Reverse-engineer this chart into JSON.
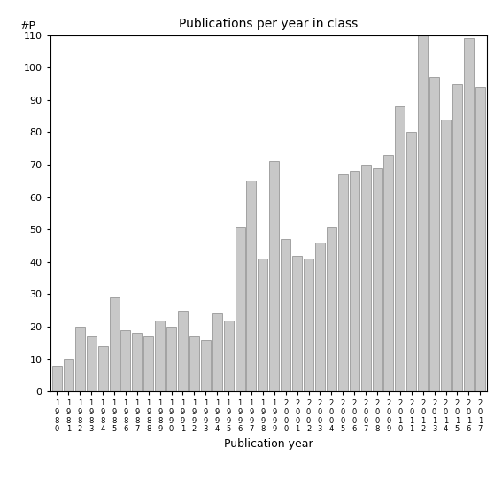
{
  "title": "Publications per year in class",
  "xlabel": "Publication year",
  "ylabel": "#P",
  "bar_color": "#c8c8c8",
  "edge_color": "#888888",
  "ylim": [
    0,
    110
  ],
  "yticks": [
    0,
    10,
    20,
    30,
    40,
    50,
    60,
    70,
    80,
    90,
    100,
    110
  ],
  "years": [
    "1980",
    "1981",
    "1982",
    "1983",
    "1984",
    "1985",
    "1986",
    "1987",
    "1988",
    "1989",
    "1990",
    "1991",
    "1992",
    "1993",
    "1994",
    "1995",
    "1996",
    "1997",
    "1998",
    "1999",
    "2000",
    "2001",
    "2002",
    "2003",
    "2004",
    "2005",
    "2006",
    "2007",
    "2008",
    "2009",
    "2010",
    "2011",
    "2012",
    "2013",
    "2014",
    "2015",
    "2016",
    "2017"
  ],
  "values": [
    8,
    10,
    20,
    17,
    14,
    29,
    19,
    18,
    17,
    22,
    20,
    25,
    17,
    16,
    24,
    22,
    51,
    65,
    41,
    71,
    47,
    42,
    41,
    46,
    51,
    67,
    68,
    70,
    69,
    73,
    88,
    80,
    110,
    97,
    84,
    95,
    109,
    94
  ]
}
